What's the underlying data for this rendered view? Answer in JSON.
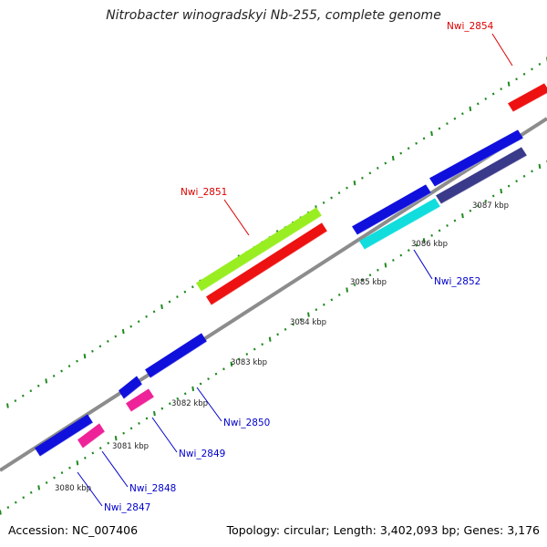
{
  "title": "Nitrobacter winogradskyi Nb-255, complete genome",
  "footer": {
    "accession": "Accession: NC_007406",
    "summary": "Topology: circular; Length: 3,402,093 bp; Genes: 3,176"
  },
  "colors": {
    "backbone": "#8c8c8c",
    "tick": "#1f8a1f",
    "forward_label": "#dd0000",
    "reverse_label": "#0000cc"
  },
  "scale_labels": [
    "3080 kbp",
    "3081 kbp",
    "3082 kbp",
    "3083 kbp",
    "3084 kbp",
    "3085 kbp",
    "3086 kbp",
    "3087 kbp"
  ],
  "gene_labels": [
    {
      "id": "Nwi_2854",
      "color": "#dd0000"
    },
    {
      "id": "Nwi_2851",
      "color": "#dd0000"
    },
    {
      "id": "Nwi_2852",
      "color": "#0000cc"
    },
    {
      "id": "Nwi_2850",
      "color": "#0000cc"
    },
    {
      "id": "Nwi_2849",
      "color": "#0000cc"
    },
    {
      "id": "Nwi_2848",
      "color": "#0000cc"
    },
    {
      "id": "Nwi_2847",
      "color": "#0000cc"
    }
  ],
  "feature_colors": {
    "blue": "#1010dd",
    "red": "#ee1111",
    "green": "#99ee22",
    "cyan": "#11dddd",
    "navy": "#3a3a8a",
    "pink": "#ee2299"
  }
}
